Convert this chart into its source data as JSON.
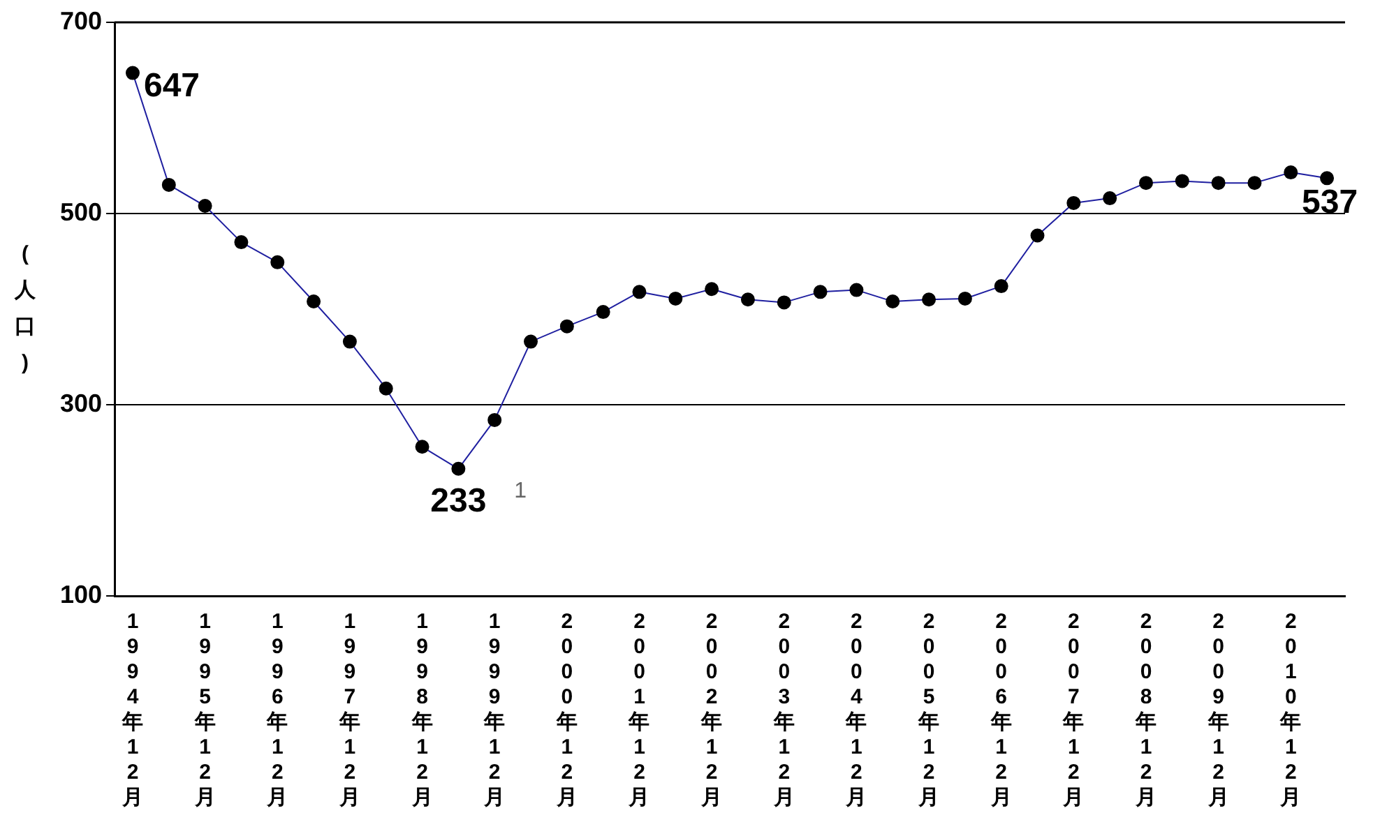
{
  "chart_data": {
    "type": "line",
    "ylabel": "(人口)",
    "categories": [
      "1994年12月",
      null,
      "1995年12月",
      null,
      "1996年12月",
      null,
      "1997年12月",
      null,
      "1998年12月",
      null,
      "1999年12月",
      null,
      "2000年12月",
      null,
      "2001年12月",
      null,
      "2002年12月",
      null,
      "2003年12月",
      null,
      "2004年12月",
      null,
      "2005年12月",
      null,
      "2006年12月",
      null,
      "2007年12月",
      null,
      "2008年12月",
      null,
      "2009年12月",
      null,
      "2010年12月",
      null
    ],
    "series": [
      {
        "color": "#1f1fa0",
        "values": [
          647,
          530,
          508,
          470,
          449,
          408,
          366,
          317,
          256,
          233,
          284,
          366,
          382,
          397,
          418,
          411,
          421,
          410,
          407,
          418,
          420,
          408,
          410,
          411,
          424,
          477,
          511,
          516,
          532,
          534,
          532,
          532,
          543,
          537
        ],
        "value_labels": [
          "647",
          null,
          null,
          null,
          null,
          null,
          null,
          null,
          null,
          "233",
          null,
          null,
          null,
          null,
          null,
          null,
          null,
          null,
          null,
          null,
          null,
          null,
          null,
          null,
          null,
          null,
          null,
          null,
          null,
          null,
          null,
          null,
          null,
          "537"
        ]
      }
    ],
    "annotations": [
      "1"
    ],
    "ylim": [
      100,
      700
    ],
    "yticks": [
      100,
      300,
      500,
      700
    ],
    "grid": "y",
    "legend": false,
    "marker": "circle",
    "line_style": "solid"
  }
}
